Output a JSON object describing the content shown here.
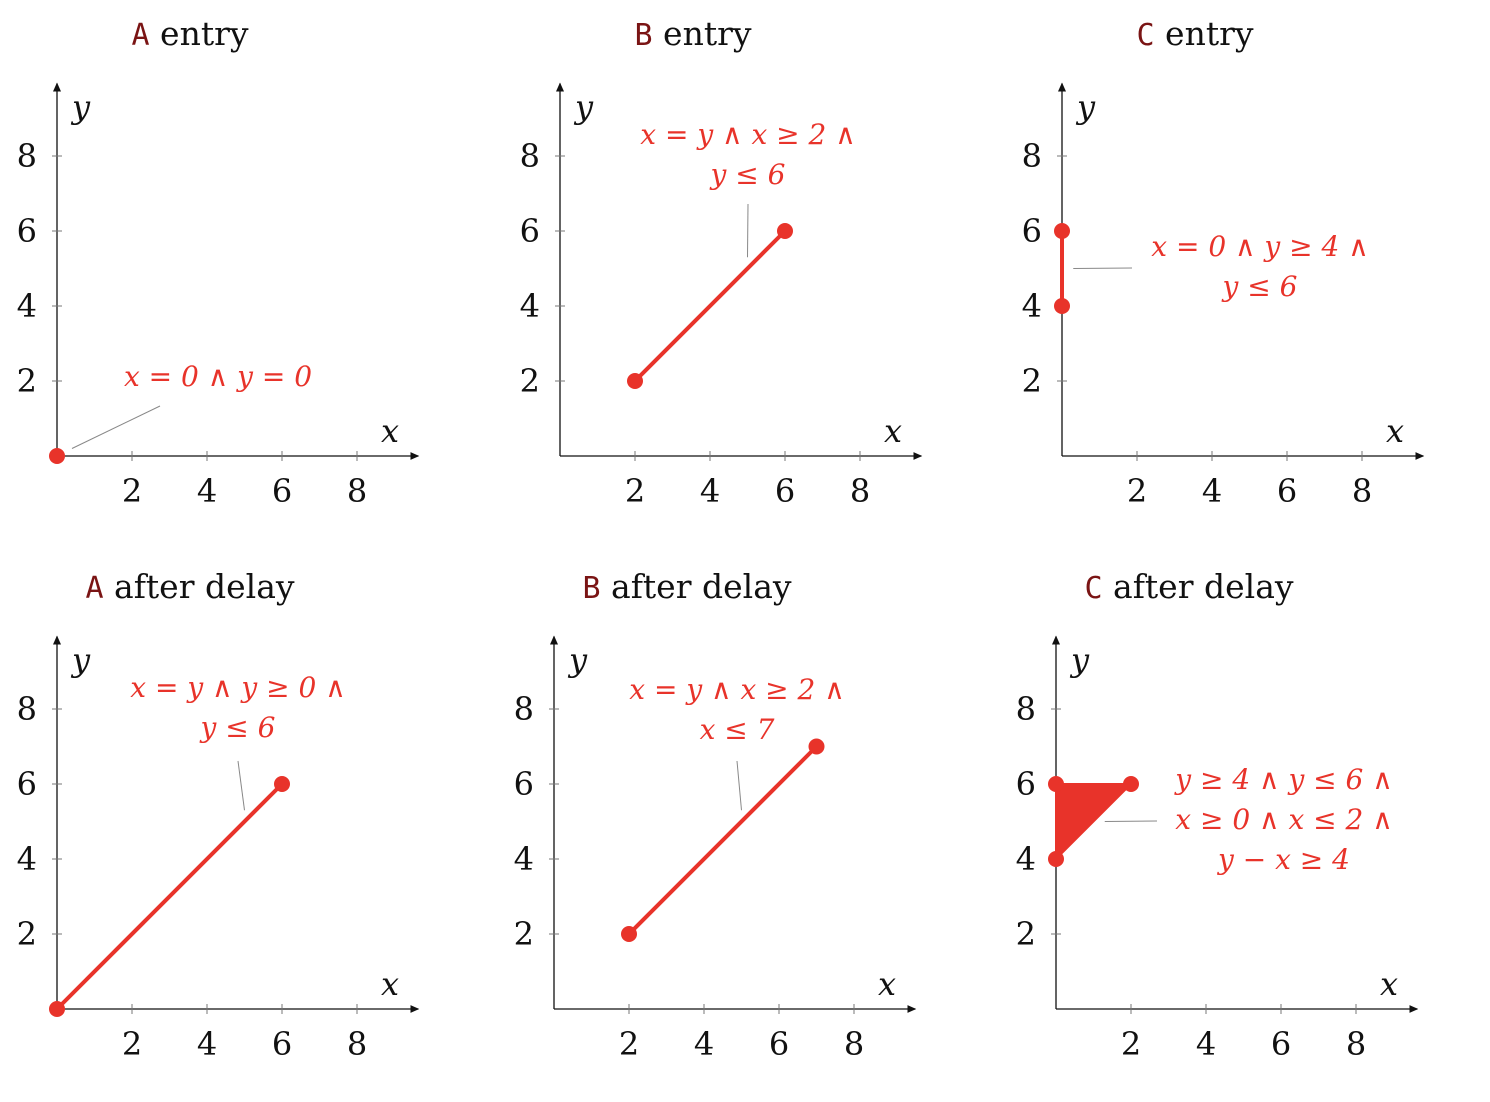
{
  "colors": {
    "region": "#e8332a",
    "location": "#7a1414",
    "axis": "#111111",
    "leader": "#888888"
  },
  "chart_data": [
    {
      "type": "scatter",
      "title_loc": "A",
      "title_text": "entry",
      "xlabel": "x",
      "ylabel": "y",
      "xlim": [
        0,
        9.5
      ],
      "ylim": [
        0,
        9.8
      ],
      "xticks": [
        2,
        4,
        6,
        8
      ],
      "yticks": [
        2,
        4,
        6,
        8
      ],
      "grid": false,
      "legend": "none",
      "points": [
        [
          0,
          0
        ]
      ],
      "region": [],
      "annotation": [
        "x = 0 ∧ y = 0"
      ],
      "annotation_anchor": [
        0.4,
        0.2
      ]
    },
    {
      "type": "line",
      "title_loc": "B",
      "title_text": "entry",
      "xlabel": "x",
      "ylabel": "y",
      "xlim": [
        0,
        9.5
      ],
      "ylim": [
        0,
        9.8
      ],
      "xticks": [
        2,
        4,
        6,
        8
      ],
      "yticks": [
        2,
        4,
        6,
        8
      ],
      "grid": false,
      "legend": "none",
      "points": [
        [
          2,
          2
        ],
        [
          6,
          6
        ]
      ],
      "region": [],
      "annotation": [
        "x = y ∧ x ≥ 2 ∧",
        "y ≤ 6"
      ],
      "annotation_anchor": [
        5,
        5.3
      ]
    },
    {
      "type": "line",
      "title_loc": "C",
      "title_text": "entry",
      "xlabel": "x",
      "ylabel": "y",
      "xlim": [
        0,
        9.5
      ],
      "ylim": [
        0,
        9.8
      ],
      "xticks": [
        2,
        4,
        6,
        8
      ],
      "yticks": [
        2,
        4,
        6,
        8
      ],
      "grid": false,
      "legend": "none",
      "points": [
        [
          0,
          4
        ],
        [
          0,
          6
        ]
      ],
      "region": [],
      "annotation": [
        "x = 0 ∧ y ≥ 4 ∧",
        "y ≤ 6"
      ],
      "annotation_anchor": [
        0.3,
        5
      ]
    },
    {
      "type": "line",
      "title_loc": "A",
      "title_text": "after delay",
      "xlabel": "x",
      "ylabel": "y",
      "xlim": [
        0,
        9.5
      ],
      "ylim": [
        0,
        9.8
      ],
      "xticks": [
        2,
        4,
        6,
        8
      ],
      "yticks": [
        2,
        4,
        6,
        8
      ],
      "grid": false,
      "legend": "none",
      "points": [
        [
          0,
          0
        ],
        [
          6,
          6
        ]
      ],
      "region": [],
      "annotation": [
        "x = y ∧ y ≥ 0 ∧",
        "y ≤ 6"
      ],
      "annotation_anchor": [
        5,
        5.3
      ]
    },
    {
      "type": "line",
      "title_loc": "B",
      "title_text": "after delay",
      "xlabel": "x",
      "ylabel": "y",
      "xlim": [
        0,
        9.5
      ],
      "ylim": [
        0,
        9.8
      ],
      "xticks": [
        2,
        4,
        6,
        8
      ],
      "yticks": [
        2,
        4,
        6,
        8
      ],
      "grid": false,
      "legend": "none",
      "points": [
        [
          2,
          2
        ],
        [
          7,
          7
        ]
      ],
      "region": [],
      "annotation": [
        "x = y ∧ x ≥ 2 ∧",
        "x ≤ 7"
      ],
      "annotation_anchor": [
        5,
        5.3
      ]
    },
    {
      "type": "area",
      "title_loc": "C",
      "title_text": "after delay",
      "xlabel": "x",
      "ylabel": "y",
      "xlim": [
        0,
        9.5
      ],
      "ylim": [
        0,
        9.8
      ],
      "xticks": [
        2,
        4,
        6,
        8
      ],
      "yticks": [
        2,
        4,
        6,
        8
      ],
      "grid": false,
      "legend": "none",
      "points": [
        [
          0,
          4
        ],
        [
          0,
          6
        ],
        [
          2,
          6
        ]
      ],
      "region": [
        [
          0,
          4
        ],
        [
          0,
          6
        ],
        [
          2,
          6
        ]
      ],
      "annotation": [
        "y ≥ 4 ∧ y ≤ 6 ∧",
        "x ≥ 0 ∧ x ≤ 2 ∧",
        "y − x ≥ 4"
      ],
      "annotation_anchor": [
        1.3,
        5
      ]
    }
  ]
}
